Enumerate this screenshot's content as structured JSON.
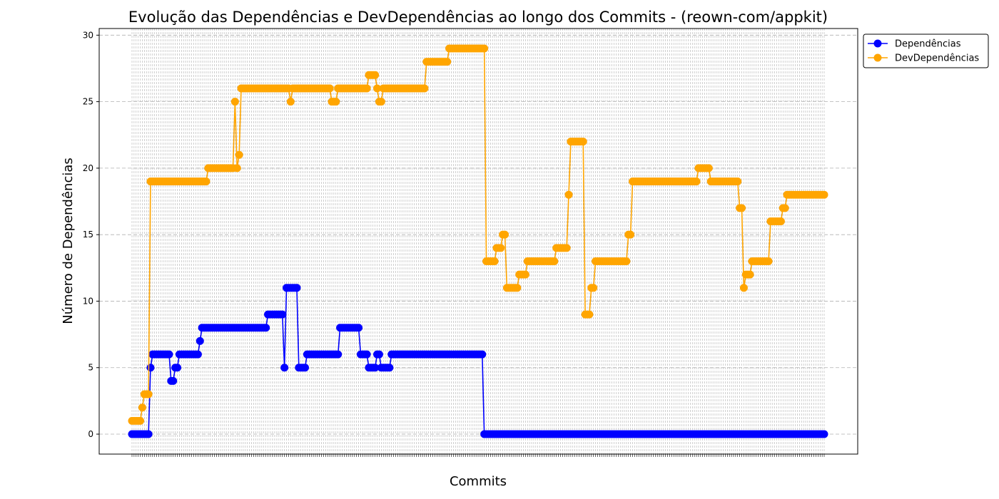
{
  "chart_data": {
    "type": "line",
    "title": "Evolução das Dependências e DevDependências ao longo dos Commits - (reown-com/appkit)",
    "xlabel": "Commits",
    "ylabel": "Número de Dependências",
    "ylim": [
      -1.5,
      30.5
    ],
    "yticks": [
      0,
      5,
      10,
      15,
      20,
      25,
      30
    ],
    "grid": true,
    "legend_position": "top-right-outside",
    "n_commits": 337,
    "series": [
      {
        "name": "Dependências",
        "color": "#0000ff",
        "segments": [
          [
            0,
            0
          ],
          [
            8,
            0
          ],
          [
            9,
            5
          ],
          [
            10,
            6
          ],
          [
            18,
            6
          ],
          [
            19,
            4
          ],
          [
            20,
            4
          ],
          [
            21,
            5
          ],
          [
            22,
            5
          ],
          [
            23,
            6
          ],
          [
            32,
            6
          ],
          [
            33,
            7
          ],
          [
            34,
            8
          ],
          [
            65,
            8
          ],
          [
            66,
            9
          ],
          [
            73,
            9
          ],
          [
            74,
            5
          ],
          [
            75,
            11
          ],
          [
            80,
            11
          ],
          [
            81,
            5
          ],
          [
            84,
            5
          ],
          [
            85,
            6
          ],
          [
            100,
            6
          ],
          [
            101,
            8
          ],
          [
            110,
            8
          ],
          [
            111,
            6
          ],
          [
            114,
            6
          ],
          [
            115,
            5
          ],
          [
            118,
            5
          ],
          [
            119,
            6
          ],
          [
            120,
            6
          ],
          [
            121,
            5
          ],
          [
            125,
            5
          ],
          [
            126,
            6
          ],
          [
            170,
            6
          ],
          [
            171,
            0
          ],
          [
            336,
            0
          ]
        ]
      },
      {
        "name": "DevDependências",
        "color": "#ffa500",
        "segments": [
          [
            0,
            1
          ],
          [
            4,
            1
          ],
          [
            5,
            2
          ],
          [
            6,
            3
          ],
          [
            8,
            3
          ],
          [
            9,
            19
          ],
          [
            36,
            19
          ],
          [
            37,
            20
          ],
          [
            49,
            20
          ],
          [
            50,
            25
          ],
          [
            51,
            20
          ],
          [
            52,
            21
          ],
          [
            53,
            26
          ],
          [
            76,
            26
          ],
          [
            77,
            25
          ],
          [
            78,
            26
          ],
          [
            96,
            26
          ],
          [
            97,
            25
          ],
          [
            99,
            25
          ],
          [
            100,
            26
          ],
          [
            114,
            26
          ],
          [
            115,
            27
          ],
          [
            118,
            27
          ],
          [
            119,
            26
          ],
          [
            120,
            25
          ],
          [
            121,
            25
          ],
          [
            122,
            26
          ],
          [
            142,
            26
          ],
          [
            143,
            28
          ],
          [
            153,
            28
          ],
          [
            154,
            29
          ],
          [
            171,
            29
          ],
          [
            172,
            13
          ],
          [
            176,
            13
          ],
          [
            177,
            14
          ],
          [
            179,
            14
          ],
          [
            180,
            15
          ],
          [
            181,
            15
          ],
          [
            182,
            11
          ],
          [
            187,
            11
          ],
          [
            188,
            12
          ],
          [
            191,
            12
          ],
          [
            192,
            13
          ],
          [
            205,
            13
          ],
          [
            206,
            14
          ],
          [
            211,
            14
          ],
          [
            212,
            18
          ],
          [
            213,
            22
          ],
          [
            219,
            22
          ],
          [
            220,
            9
          ],
          [
            222,
            9
          ],
          [
            223,
            11
          ],
          [
            224,
            11
          ],
          [
            225,
            13
          ],
          [
            240,
            13
          ],
          [
            241,
            15
          ],
          [
            242,
            15
          ],
          [
            243,
            19
          ],
          [
            274,
            19
          ],
          [
            275,
            20
          ],
          [
            280,
            20
          ],
          [
            281,
            19
          ],
          [
            294,
            19
          ],
          [
            295,
            17
          ],
          [
            296,
            17
          ],
          [
            297,
            11
          ],
          [
            298,
            12
          ],
          [
            300,
            12
          ],
          [
            301,
            13
          ],
          [
            309,
            13
          ],
          [
            310,
            16
          ],
          [
            315,
            16
          ],
          [
            316,
            17
          ],
          [
            317,
            17
          ],
          [
            318,
            18
          ],
          [
            336,
            18
          ]
        ]
      }
    ]
  }
}
